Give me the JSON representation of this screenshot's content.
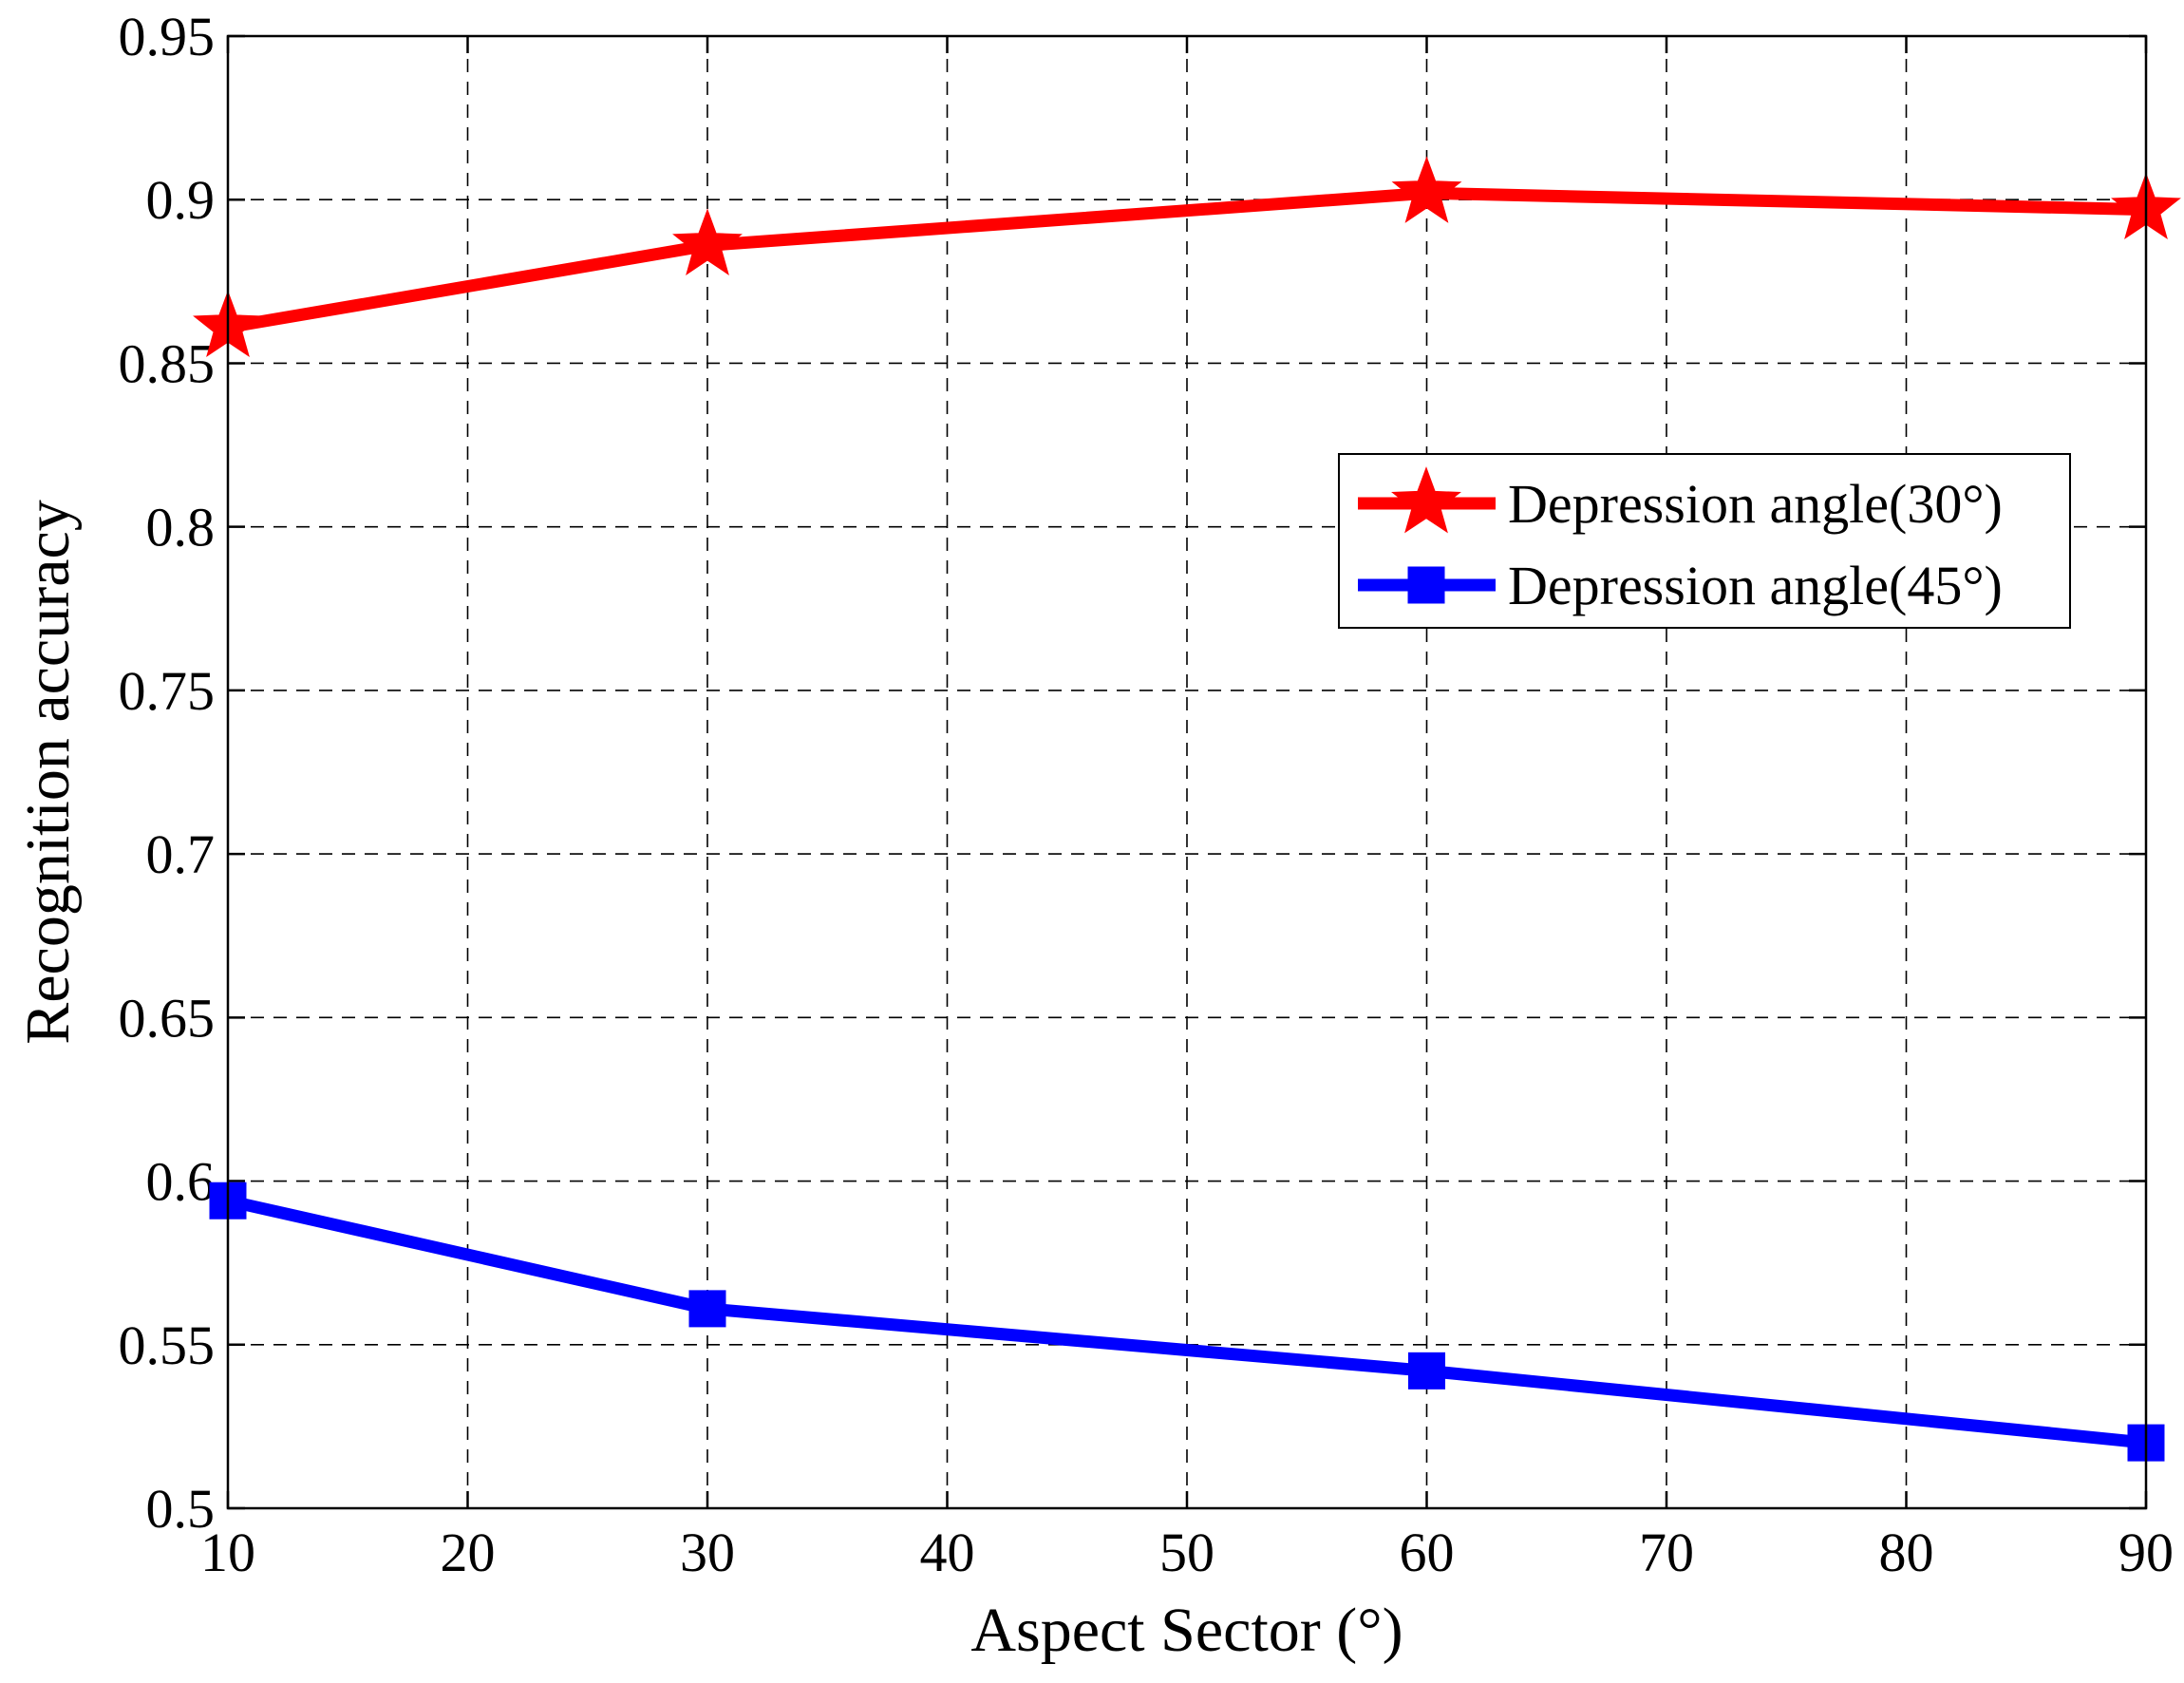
{
  "chart_data": {
    "type": "line",
    "title": "",
    "xlabel": "Aspect Sector (°)",
    "ylabel": "Recognition accuracy",
    "xlim": [
      10,
      90
    ],
    "ylim": [
      0.5,
      0.95
    ],
    "x_ticks": [
      10,
      20,
      30,
      40,
      50,
      60,
      70,
      80,
      90
    ],
    "x_tick_labels": [
      "10",
      "20",
      "30",
      "40",
      "50",
      "60",
      "70",
      "80",
      "90"
    ],
    "y_ticks": [
      0.5,
      0.55,
      0.6,
      0.65,
      0.7,
      0.75,
      0.8,
      0.85,
      0.9,
      0.95
    ],
    "y_tick_labels": [
      "0.5",
      "0.55",
      "0.6",
      "0.65",
      "0.7",
      "0.75",
      "0.8",
      "0.85",
      "0.9",
      "0.95"
    ],
    "grid": true,
    "legend_position": "middle-right",
    "x": [
      10,
      30,
      60,
      90
    ],
    "series": [
      {
        "name": "Depression angle(30°)",
        "values": [
          0.861,
          0.886,
          0.902,
          0.897
        ],
        "color": "#ff0000",
        "marker": "star"
      },
      {
        "name": "Depression angle(45°)",
        "values": [
          0.594,
          0.561,
          0.542,
          0.52
        ],
        "color": "#0000ff",
        "marker": "square"
      }
    ]
  }
}
